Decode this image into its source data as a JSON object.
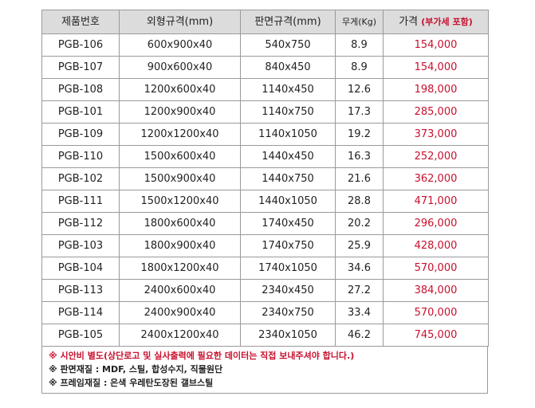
{
  "table": {
    "headers": {
      "model": "제품번호",
      "outer": "외형규격(mm)",
      "board": "판면규격(mm)",
      "weight": "무게(Kg)",
      "price": "가격",
      "price_note": "(부가세 포함)"
    },
    "rows": [
      {
        "model": "PGB-106",
        "outer": "600x900x40",
        "board": "540x750",
        "weight": "8.9",
        "price": "154,000"
      },
      {
        "model": "PGB-107",
        "outer": "900x600x40",
        "board": "840x450",
        "weight": "8.9",
        "price": "154,000"
      },
      {
        "model": "PGB-108",
        "outer": "1200x600x40",
        "board": "1140x450",
        "weight": "12.6",
        "price": "198,000"
      },
      {
        "model": "PGB-101",
        "outer": "1200x900x40",
        "board": "1140x750",
        "weight": "17.3",
        "price": "285,000"
      },
      {
        "model": "PGB-109",
        "outer": "1200x1200x40",
        "board": "1140x1050",
        "weight": "19.2",
        "price": "373,000"
      },
      {
        "model": "PGB-110",
        "outer": "1500x600x40",
        "board": "1440x450",
        "weight": "16.3",
        "price": "252,000"
      },
      {
        "model": "PGB-102",
        "outer": "1500x900x40",
        "board": "1440x750",
        "weight": "21.6",
        "price": "362,000"
      },
      {
        "model": "PGB-111",
        "outer": "1500x1200x40",
        "board": "1440x1050",
        "weight": "28.8",
        "price": "471,000"
      },
      {
        "model": "PGB-112",
        "outer": "1800x600x40",
        "board": "1740x450",
        "weight": "20.2",
        "price": "296,000"
      },
      {
        "model": "PGB-103",
        "outer": "1800x900x40",
        "board": "1740x750",
        "weight": "25.9",
        "price": "428,000"
      },
      {
        "model": "PGB-104",
        "outer": "1800x1200x40",
        "board": "1740x1050",
        "weight": "34.6",
        "price": "570,000"
      },
      {
        "model": "PGB-113",
        "outer": "2400x600x40",
        "board": "2340x450",
        "weight": "27.2",
        "price": "384,000"
      },
      {
        "model": "PGB-114",
        "outer": "2400x900x40",
        "board": "2340x750",
        "weight": "33.4",
        "price": "570,000"
      },
      {
        "model": "PGB-105",
        "outer": "2400x1200x40",
        "board": "2340x1050",
        "weight": "46.2",
        "price": "745,000"
      }
    ]
  },
  "notes": [
    "※ 시안비 별도(상단로고 및 실사출력에 필요한 데이터는 직접 보내주셔야 합니다.)",
    "※ 판면재질 : MDF, 스틸, 합성수지, 직물원단",
    "※ 프레임재질 : 은색 우레탄도장된 갤브스틸"
  ],
  "colors": {
    "header_bg": "#dcdcdc",
    "price_red": "#c8102e",
    "border": "#9a9a9a"
  }
}
